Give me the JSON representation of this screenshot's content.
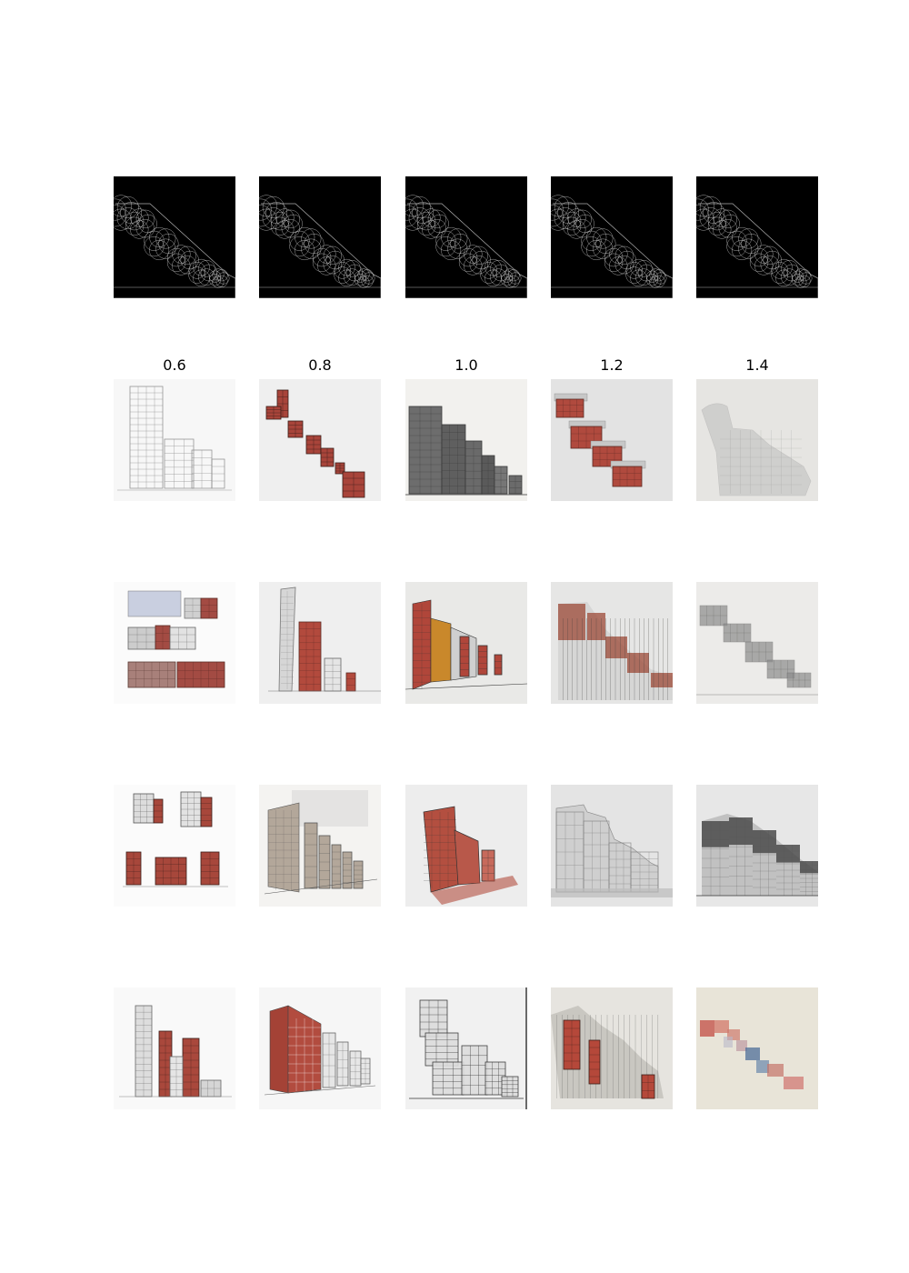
{
  "figure": {
    "column_labels": [
      "0.6",
      "0.8",
      "1.0",
      "1.2",
      "1.4"
    ],
    "rows": [
      {
        "tiles": [
          {
            "kind": "edge-map",
            "background": "#000000",
            "stroke": "#d9d9d9"
          },
          {
            "kind": "edge-map",
            "background": "#000000",
            "stroke": "#d9d9d9"
          },
          {
            "kind": "edge-map",
            "background": "#000000",
            "stroke": "#d9d9d9"
          },
          {
            "kind": "edge-map",
            "background": "#000000",
            "stroke": "#d9d9d9"
          },
          {
            "kind": "edge-map",
            "background": "#000000",
            "stroke": "#d9d9d9"
          }
        ]
      },
      {
        "tiles": [
          {
            "kind": "pencil-towers",
            "background": "#f7f7f7",
            "accent": "#8a8a8a"
          },
          {
            "kind": "diagonal-red-blocks",
            "background": "#efefef",
            "accent": "#a8443a"
          },
          {
            "kind": "dark-stepped-towers",
            "background": "#f2f1ee",
            "accent": "#3a3a3a"
          },
          {
            "kind": "floating-red-blocks",
            "background": "#e3e3e3",
            "accent": "#b04a3e"
          },
          {
            "kind": "faint-stepped-mass",
            "background": "#e6e5e2",
            "accent": "#b5b5b5"
          }
        ]
      },
      {
        "tiles": [
          {
            "kind": "sketch-sheet",
            "background": "#fbfbfb",
            "accent": "#a34b43"
          },
          {
            "kind": "tower-and-red-block",
            "background": "#efefef",
            "accent": "#b24a3d"
          },
          {
            "kind": "street-perspective",
            "background": "#e9e9e7",
            "accent": "#c9882b"
          },
          {
            "kind": "rust-smudged-stairs",
            "background": "#e6e6e5",
            "accent": "#9c4a37"
          },
          {
            "kind": "grey-floating-blocks",
            "background": "#ecebe9",
            "accent": "#8c8c8c"
          }
        ]
      },
      {
        "tiles": [
          {
            "kind": "multi-view-red",
            "background": "#fbfbfb",
            "accent": "#a7473b"
          },
          {
            "kind": "beige-street",
            "background": "#f4f3f1",
            "accent": "#b3a79a"
          },
          {
            "kind": "red-tilted-block",
            "background": "#ededed",
            "accent": "#b34f40"
          },
          {
            "kind": "grey-stepped-wash",
            "background": "#e4e4e4",
            "accent": "#8f8f8f"
          },
          {
            "kind": "dark-charcoal-stairs",
            "background": "#e7e7e7",
            "accent": "#444444"
          }
        ]
      },
      {
        "tiles": [
          {
            "kind": "tower-trio-red",
            "background": "#f9f9f9",
            "accent": "#a9483c"
          },
          {
            "kind": "red-corner-street",
            "background": "#f6f6f6",
            "accent": "#b24c3f"
          },
          {
            "kind": "black-sketch-boxes",
            "background": "#f1f1f1",
            "accent": "#2e2e2e"
          },
          {
            "kind": "red-grey-cascade",
            "background": "#e6e4df",
            "accent": "#b5483a"
          },
          {
            "kind": "watercolor-patches",
            "background": "#e8e4d8",
            "accent": "#c4564d"
          }
        ]
      }
    ]
  }
}
